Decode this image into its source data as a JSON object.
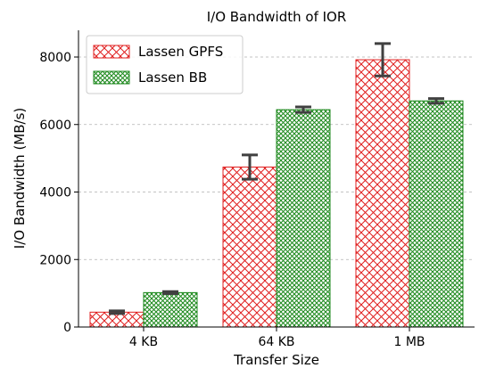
{
  "chart_data": {
    "type": "bar",
    "title": "I/O Bandwidth of IOR",
    "xlabel": "Transfer Size",
    "ylabel": "I/O Bandwidth (MB/s)",
    "categories": [
      "4 KB",
      "64 KB",
      "1 MB"
    ],
    "ylim": [
      0,
      8800
    ],
    "yticks": [
      0,
      2000,
      4000,
      6000,
      8000
    ],
    "yticks_labels": [
      "0",
      "2000",
      "4000",
      "6000",
      "8000"
    ],
    "grid": "y-dashed",
    "legend_position": "top-left",
    "series": [
      {
        "name": "Lassen GPFS",
        "color": "#e02020",
        "hatch": "crosshatch",
        "values": [
          440,
          4740,
          7920
        ],
        "errors": [
          40,
          360,
          480
        ]
      },
      {
        "name": "Lassen BB",
        "color": "#1e8a1e",
        "hatch": "dense-crosshatch",
        "values": [
          1020,
          6440,
          6700
        ],
        "errors": [
          30,
          80,
          70
        ]
      }
    ]
  }
}
